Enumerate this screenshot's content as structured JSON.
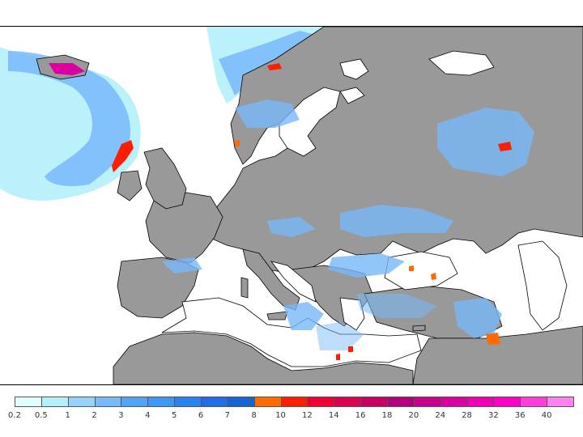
{
  "map": {
    "land_color": "#999999",
    "sea_color": "#ffffff",
    "region": "Europe, North Atlantic and Mediterranean"
  },
  "legend": {
    "labels": [
      "0.2",
      "0.5",
      "1",
      "2",
      "3",
      "4",
      "5",
      "6",
      "7",
      "8",
      "10",
      "12",
      "14",
      "16",
      "18",
      "20",
      "24",
      "28",
      "32",
      "36",
      "40"
    ],
    "colors": [
      "#e1ffff",
      "#b4f0fa",
      "#96d2fa",
      "#78b9fa",
      "#50a5f5",
      "#3c97f5",
      "#2882f0",
      "#1e6eeb",
      "#1464d2",
      "#ff6b00",
      "#ff1e00",
      "#f00032",
      "#dc0050",
      "#c80064",
      "#b4007d",
      "#c8008c",
      "#dc00a0",
      "#f000b4",
      "#ff00c8",
      "#ff3cdc",
      "#ff82f0"
    ]
  }
}
